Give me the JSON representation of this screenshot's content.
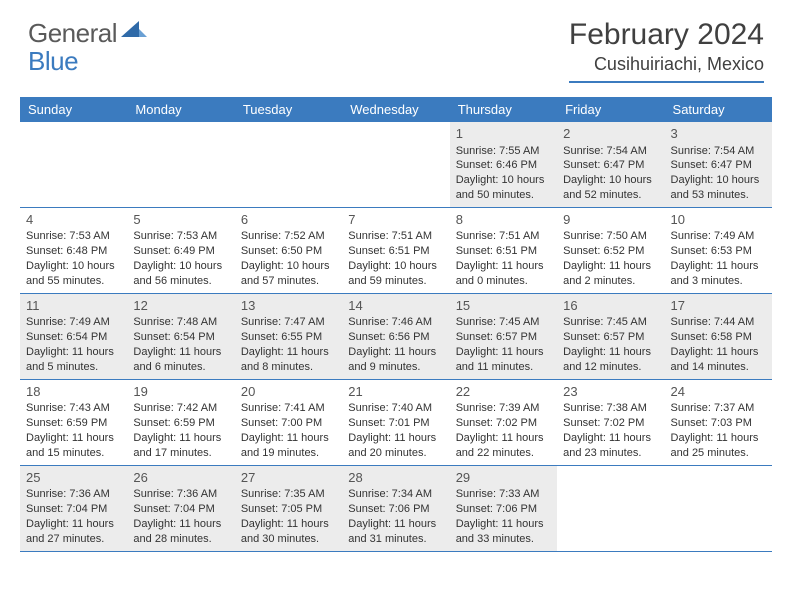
{
  "logo": {
    "general": "General",
    "blue": "Blue"
  },
  "header": {
    "month_title": "February 2024",
    "location": "Cusihuiriachi, Mexico"
  },
  "colors": {
    "accent": "#3b7bbf",
    "shaded": "#ececec",
    "text": "#333333",
    "header_text": "#404040"
  },
  "weekdays": [
    "Sunday",
    "Monday",
    "Tuesday",
    "Wednesday",
    "Thursday",
    "Friday",
    "Saturday"
  ],
  "weeks": [
    [
      null,
      null,
      null,
      null,
      {
        "n": "1",
        "sr": "Sunrise: 7:55 AM",
        "ss": "Sunset: 6:46 PM",
        "d1": "Daylight: 10 hours",
        "d2": "and 50 minutes."
      },
      {
        "n": "2",
        "sr": "Sunrise: 7:54 AM",
        "ss": "Sunset: 6:47 PM",
        "d1": "Daylight: 10 hours",
        "d2": "and 52 minutes."
      },
      {
        "n": "3",
        "sr": "Sunrise: 7:54 AM",
        "ss": "Sunset: 6:47 PM",
        "d1": "Daylight: 10 hours",
        "d2": "and 53 minutes."
      }
    ],
    [
      {
        "n": "4",
        "sr": "Sunrise: 7:53 AM",
        "ss": "Sunset: 6:48 PM",
        "d1": "Daylight: 10 hours",
        "d2": "and 55 minutes."
      },
      {
        "n": "5",
        "sr": "Sunrise: 7:53 AM",
        "ss": "Sunset: 6:49 PM",
        "d1": "Daylight: 10 hours",
        "d2": "and 56 minutes."
      },
      {
        "n": "6",
        "sr": "Sunrise: 7:52 AM",
        "ss": "Sunset: 6:50 PM",
        "d1": "Daylight: 10 hours",
        "d2": "and 57 minutes."
      },
      {
        "n": "7",
        "sr": "Sunrise: 7:51 AM",
        "ss": "Sunset: 6:51 PM",
        "d1": "Daylight: 10 hours",
        "d2": "and 59 minutes."
      },
      {
        "n": "8",
        "sr": "Sunrise: 7:51 AM",
        "ss": "Sunset: 6:51 PM",
        "d1": "Daylight: 11 hours",
        "d2": "and 0 minutes."
      },
      {
        "n": "9",
        "sr": "Sunrise: 7:50 AM",
        "ss": "Sunset: 6:52 PM",
        "d1": "Daylight: 11 hours",
        "d2": "and 2 minutes."
      },
      {
        "n": "10",
        "sr": "Sunrise: 7:49 AM",
        "ss": "Sunset: 6:53 PM",
        "d1": "Daylight: 11 hours",
        "d2": "and 3 minutes."
      }
    ],
    [
      {
        "n": "11",
        "sr": "Sunrise: 7:49 AM",
        "ss": "Sunset: 6:54 PM",
        "d1": "Daylight: 11 hours",
        "d2": "and 5 minutes."
      },
      {
        "n": "12",
        "sr": "Sunrise: 7:48 AM",
        "ss": "Sunset: 6:54 PM",
        "d1": "Daylight: 11 hours",
        "d2": "and 6 minutes."
      },
      {
        "n": "13",
        "sr": "Sunrise: 7:47 AM",
        "ss": "Sunset: 6:55 PM",
        "d1": "Daylight: 11 hours",
        "d2": "and 8 minutes."
      },
      {
        "n": "14",
        "sr": "Sunrise: 7:46 AM",
        "ss": "Sunset: 6:56 PM",
        "d1": "Daylight: 11 hours",
        "d2": "and 9 minutes."
      },
      {
        "n": "15",
        "sr": "Sunrise: 7:45 AM",
        "ss": "Sunset: 6:57 PM",
        "d1": "Daylight: 11 hours",
        "d2": "and 11 minutes."
      },
      {
        "n": "16",
        "sr": "Sunrise: 7:45 AM",
        "ss": "Sunset: 6:57 PM",
        "d1": "Daylight: 11 hours",
        "d2": "and 12 minutes."
      },
      {
        "n": "17",
        "sr": "Sunrise: 7:44 AM",
        "ss": "Sunset: 6:58 PM",
        "d1": "Daylight: 11 hours",
        "d2": "and 14 minutes."
      }
    ],
    [
      {
        "n": "18",
        "sr": "Sunrise: 7:43 AM",
        "ss": "Sunset: 6:59 PM",
        "d1": "Daylight: 11 hours",
        "d2": "and 15 minutes."
      },
      {
        "n": "19",
        "sr": "Sunrise: 7:42 AM",
        "ss": "Sunset: 6:59 PM",
        "d1": "Daylight: 11 hours",
        "d2": "and 17 minutes."
      },
      {
        "n": "20",
        "sr": "Sunrise: 7:41 AM",
        "ss": "Sunset: 7:00 PM",
        "d1": "Daylight: 11 hours",
        "d2": "and 19 minutes."
      },
      {
        "n": "21",
        "sr": "Sunrise: 7:40 AM",
        "ss": "Sunset: 7:01 PM",
        "d1": "Daylight: 11 hours",
        "d2": "and 20 minutes."
      },
      {
        "n": "22",
        "sr": "Sunrise: 7:39 AM",
        "ss": "Sunset: 7:02 PM",
        "d1": "Daylight: 11 hours",
        "d2": "and 22 minutes."
      },
      {
        "n": "23",
        "sr": "Sunrise: 7:38 AM",
        "ss": "Sunset: 7:02 PM",
        "d1": "Daylight: 11 hours",
        "d2": "and 23 minutes."
      },
      {
        "n": "24",
        "sr": "Sunrise: 7:37 AM",
        "ss": "Sunset: 7:03 PM",
        "d1": "Daylight: 11 hours",
        "d2": "and 25 minutes."
      }
    ],
    [
      {
        "n": "25",
        "sr": "Sunrise: 7:36 AM",
        "ss": "Sunset: 7:04 PM",
        "d1": "Daylight: 11 hours",
        "d2": "and 27 minutes."
      },
      {
        "n": "26",
        "sr": "Sunrise: 7:36 AM",
        "ss": "Sunset: 7:04 PM",
        "d1": "Daylight: 11 hours",
        "d2": "and 28 minutes."
      },
      {
        "n": "27",
        "sr": "Sunrise: 7:35 AM",
        "ss": "Sunset: 7:05 PM",
        "d1": "Daylight: 11 hours",
        "d2": "and 30 minutes."
      },
      {
        "n": "28",
        "sr": "Sunrise: 7:34 AM",
        "ss": "Sunset: 7:06 PM",
        "d1": "Daylight: 11 hours",
        "d2": "and 31 minutes."
      },
      {
        "n": "29",
        "sr": "Sunrise: 7:33 AM",
        "ss": "Sunset: 7:06 PM",
        "d1": "Daylight: 11 hours",
        "d2": "and 33 minutes."
      },
      null,
      null
    ]
  ]
}
